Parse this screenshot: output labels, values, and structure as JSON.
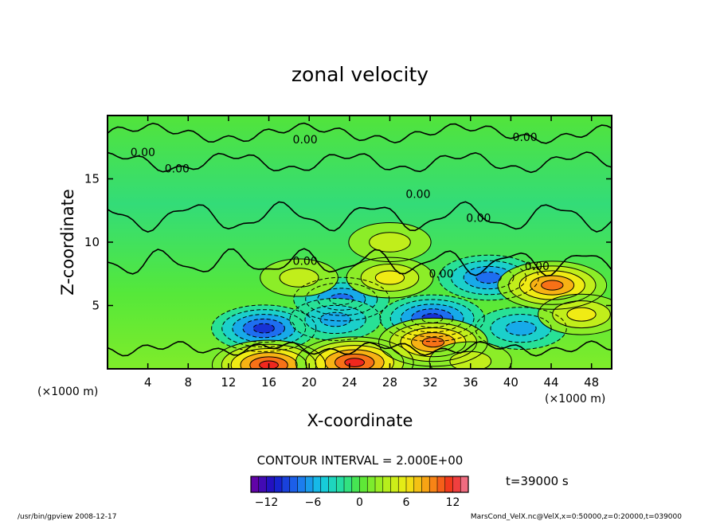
{
  "chart_data": {
    "type": "heatmap",
    "title": "zonal velocity",
    "xlabel": "X-coordinate",
    "ylabel": "Z-coordinate",
    "x_unit_left": "(×1000 m)",
    "x_unit_right": "(×1000 m)",
    "xlim": [
      0,
      50
    ],
    "ylim": [
      0,
      20
    ],
    "x_ticks": [
      4,
      8,
      12,
      16,
      20,
      24,
      28,
      32,
      36,
      40,
      44,
      48
    ],
    "y_ticks": [
      5,
      10,
      15
    ],
    "contour_interval_label": "CONTOUR INTERVAL = 2.000E+00",
    "zero_contour_labels": [
      {
        "x": 3.5,
        "z": 16.8,
        "text": "0.00"
      },
      {
        "x": 6.9,
        "z": 15.5,
        "text": "0.00"
      },
      {
        "x": 19.6,
        "z": 17.8,
        "text": "0.00"
      },
      {
        "x": 41.4,
        "z": 18.0,
        "text": "0.00"
      },
      {
        "x": 30.8,
        "z": 13.5,
        "text": "0.00"
      },
      {
        "x": 36.8,
        "z": 11.6,
        "text": "0.00"
      },
      {
        "x": 19.6,
        "z": 8.2,
        "text": "0.00"
      },
      {
        "x": 33.1,
        "z": 7.2,
        "text": "0.00"
      },
      {
        "x": 42.6,
        "z": 7.8,
        "text": "0.00"
      }
    ],
    "features": [
      {
        "x": 15.5,
        "z": 3.2,
        "value": -9
      },
      {
        "x": 23.2,
        "z": 5.5,
        "value": -7
      },
      {
        "x": 22.6,
        "z": 3.9,
        "value": -6
      },
      {
        "x": 32.2,
        "z": 4.0,
        "value": -9
      },
      {
        "x": 37.8,
        "z": 7.2,
        "value": -8
      },
      {
        "x": 41.0,
        "z": 3.2,
        "value": -6
      },
      {
        "x": 16.0,
        "z": 0.3,
        "value": 11
      },
      {
        "x": 24.5,
        "z": 0.5,
        "value": 12
      },
      {
        "x": 32.3,
        "z": 2.1,
        "value": 10
      },
      {
        "x": 44.1,
        "z": 6.6,
        "value": 10
      },
      {
        "x": 28.0,
        "z": 7.2,
        "value": 5
      },
      {
        "x": 19.0,
        "z": 7.2,
        "value": 3
      },
      {
        "x": 47.0,
        "z": 4.3,
        "value": 5
      },
      {
        "x": 28.0,
        "z": 10.0,
        "value": 4
      },
      {
        "x": 36.0,
        "z": 0.6,
        "value": 4
      }
    ],
    "colorbar": {
      "min": -14,
      "max": 14,
      "ticks": [
        -12,
        -6,
        0,
        6,
        12
      ],
      "tick_labels": [
        "−12",
        "−6",
        "0",
        "6",
        "12"
      ]
    }
  },
  "annotations": {
    "time": "t=39000 s",
    "footer_left": "/usr/bin/gpview   2008-12-17",
    "footer_right": "MarsCond_VelX.nc@VelX,x=0:50000,z=0:20000,t=039000"
  }
}
